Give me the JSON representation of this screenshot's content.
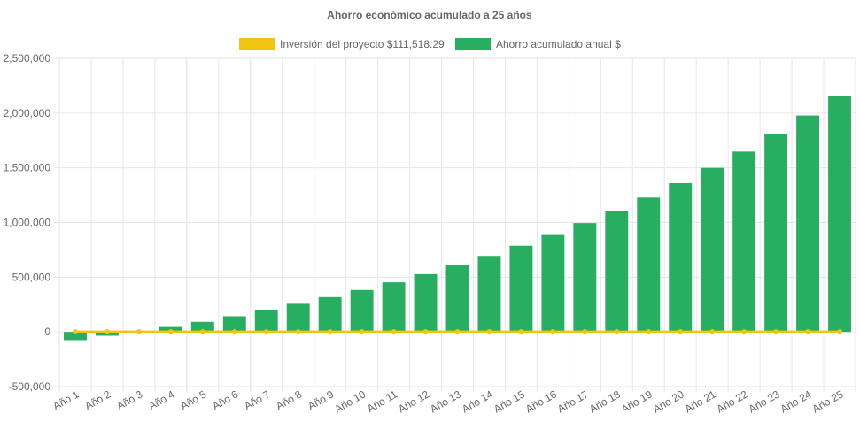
{
  "chart_data": {
    "type": "bar",
    "title": "Ahorro económico acumulado a 25 años",
    "categories": [
      "Año 1",
      "Año 2",
      "Año 3",
      "Año 4",
      "Año 5",
      "Año 6",
      "Año 7",
      "Año 8",
      "Año 9",
      "Año 10",
      "Año 11",
      "Año 12",
      "Año 13",
      "Año 14",
      "Año 15",
      "Año 16",
      "Año 17",
      "Año 18",
      "Año 19",
      "Año 20",
      "Año 21",
      "Año 22",
      "Año 23",
      "Año 24",
      "Año 25"
    ],
    "series": [
      {
        "name": "Inversión del proyecto $111,518.29",
        "type": "line",
        "color": "#f1c40f",
        "values": [
          0,
          0,
          0,
          0,
          0,
          0,
          0,
          0,
          0,
          0,
          0,
          0,
          0,
          0,
          0,
          0,
          0,
          0,
          0,
          0,
          0,
          0,
          0,
          0,
          0
        ]
      },
      {
        "name": "Ahorro acumulado anual $",
        "type": "bar",
        "color": "#27ae60",
        "values": [
          -75000,
          -35000,
          5000,
          45000,
          92000,
          143000,
          198000,
          257000,
          318000,
          383000,
          453000,
          528000,
          608000,
          695000,
          788000,
          886000,
          995000,
          1105000,
          1228000,
          1360000,
          1500000,
          1648000,
          1808000,
          1978000,
          2158000
        ]
      }
    ],
    "ylim": [
      -500000,
      2500000
    ],
    "yticks": [
      -500000,
      0,
      500000,
      1000000,
      1500000,
      2000000,
      2500000
    ],
    "ytick_labels": [
      "-500,000",
      "0",
      "500,000",
      "1,000,000",
      "1,500,000",
      "2,000,000",
      "2,500,000"
    ],
    "xlabel": "",
    "ylabel": "",
    "grid": true,
    "legend_position": "top"
  }
}
